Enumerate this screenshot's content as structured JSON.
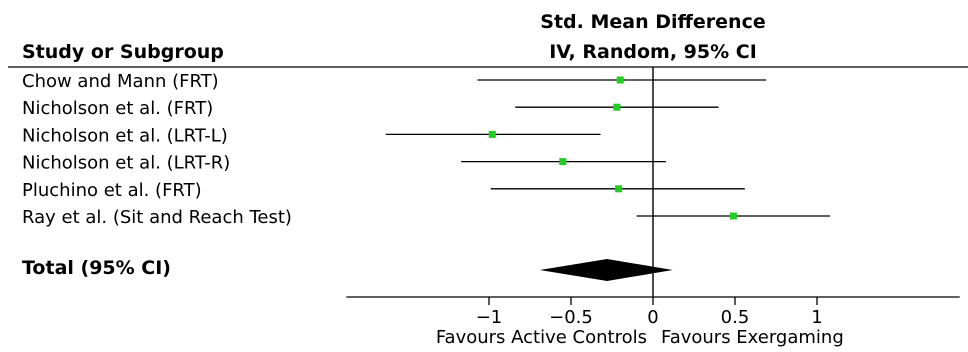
{
  "chart_data": {
    "type": "forest",
    "column_header": "Study or Subgroup",
    "effect_header_line1": "Std. Mean Difference",
    "effect_header_line2": "IV, Random, 95% CI",
    "studies": [
      {
        "label": "Chow and Mann (FRT)",
        "estimate": -0.2,
        "ci_low": -1.07,
        "ci_high": 0.69
      },
      {
        "label": "Nicholson et al. (FRT)",
        "estimate": -0.22,
        "ci_low": -0.84,
        "ci_high": 0.4
      },
      {
        "label": "Nicholson et al. (LRT-L)",
        "estimate": -0.98,
        "ci_low": -1.63,
        "ci_high": -0.32
      },
      {
        "label": "Nicholson et al. (LRT-R)",
        "estimate": -0.55,
        "ci_low": -1.17,
        "ci_high": 0.08
      },
      {
        "label": "Pluchino et al. (FRT)",
        "estimate": -0.21,
        "ci_low": -0.99,
        "ci_high": 0.56
      },
      {
        "label": "Ray et al. (Sit and Reach Test)",
        "estimate": 0.49,
        "ci_low": -0.1,
        "ci_high": 1.08
      }
    ],
    "total": {
      "label": "Total (95% CI)",
      "estimate": -0.28,
      "ci_low": -0.69,
      "ci_high": 0.12
    },
    "x_ticks": [
      -1,
      -0.5,
      0,
      0.5,
      1
    ],
    "x_tick_labels": [
      "−1",
      "−0.5",
      "0",
      "0.5",
      "1"
    ],
    "xlim": [
      -1.87,
      1.87
    ],
    "favours_left": "Favours Active Controls",
    "favours_right": "Favours Exergaming",
    "marker_color": "#22cc22",
    "line_color": "#000000"
  }
}
